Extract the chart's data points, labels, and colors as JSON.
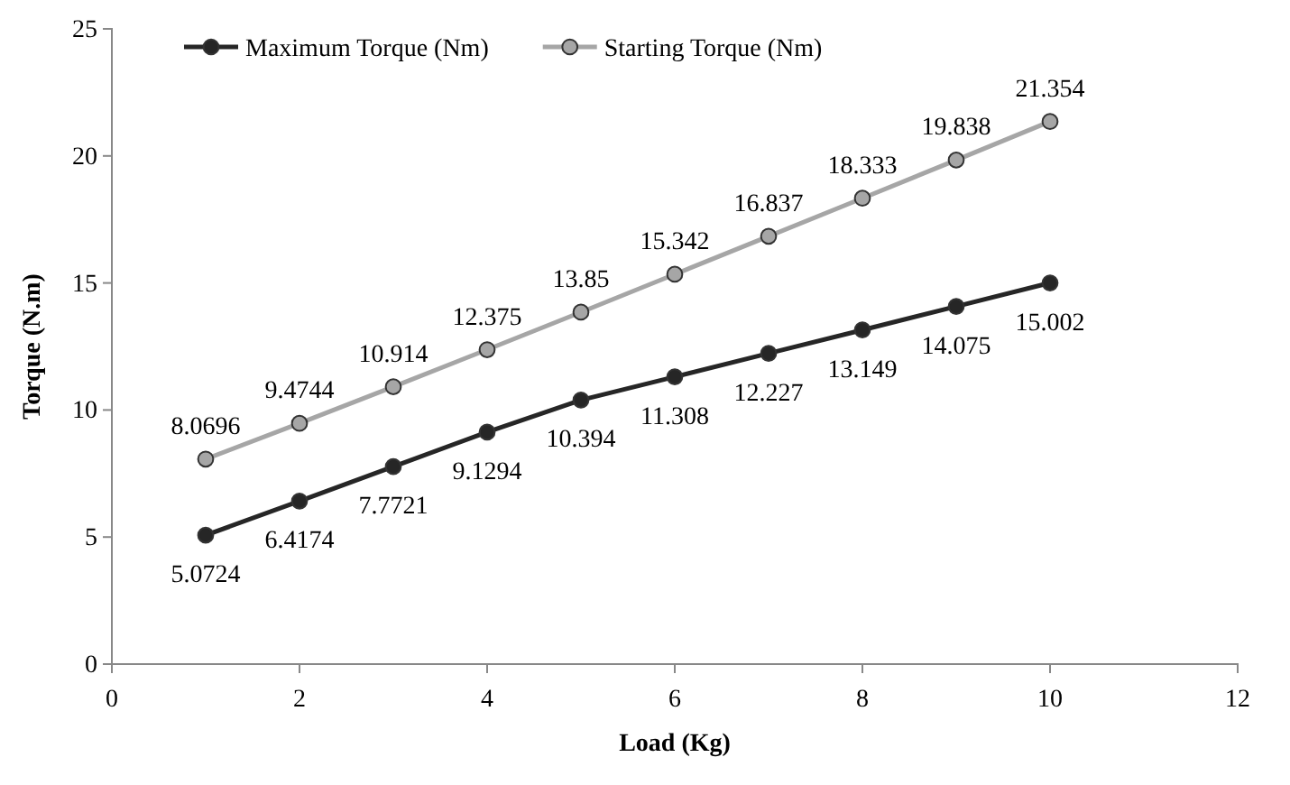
{
  "chart_data": {
    "type": "line",
    "xlabel": "Load (Kg)",
    "ylabel": "Torque (N.m)",
    "x": [
      1,
      2,
      3,
      4,
      5,
      6,
      7,
      8,
      9,
      10
    ],
    "series": [
      {
        "name": "Maximum Torque (Nm)",
        "color": "#262626",
        "values": [
          5.0724,
          6.4174,
          7.7721,
          9.1294,
          10.394,
          11.308,
          12.227,
          13.149,
          14.075,
          15.002
        ]
      },
      {
        "name": "Starting Torque (Nm)",
        "color": "#a6a6a6",
        "values": [
          8.0696,
          9.4744,
          10.914,
          12.375,
          13.85,
          15.342,
          16.837,
          18.333,
          19.838,
          21.354
        ]
      }
    ],
    "xlim": [
      0,
      12
    ],
    "xticks": [
      0,
      2,
      4,
      6,
      8,
      10,
      12
    ],
    "ylim": [
      0,
      25
    ],
    "yticks": [
      0,
      5,
      10,
      15,
      20,
      25
    ],
    "grid": false,
    "legend": "top left",
    "marker": "circle",
    "line_style": "solid",
    "data_labels": true
  }
}
